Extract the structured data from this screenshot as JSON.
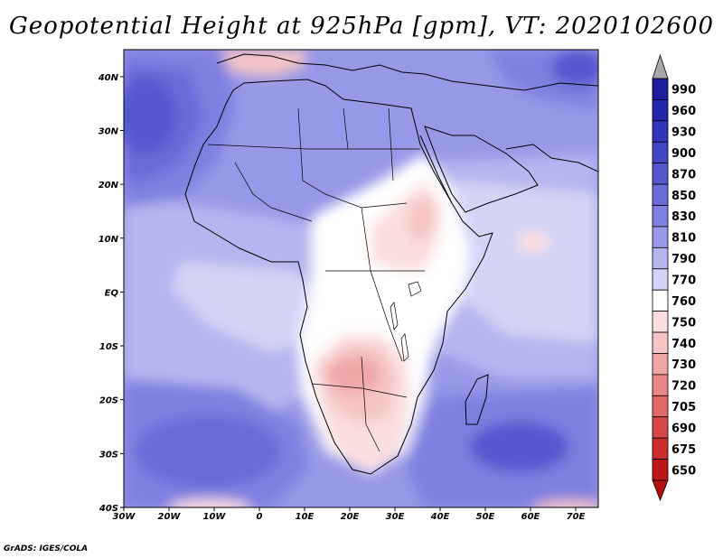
{
  "title": "Geopotential Height at 925hPa [gpm], VT: 2020102600",
  "footer": "GrADS: IGES/COLA",
  "map": {
    "projection": "latlon",
    "lon_range": [
      -30,
      75
    ],
    "lat_range": [
      -40,
      45
    ],
    "lon_ticks": [
      {
        "value": -30,
        "label": "30W"
      },
      {
        "value": -20,
        "label": "20W"
      },
      {
        "value": -10,
        "label": "10W"
      },
      {
        "value": 0,
        "label": "0"
      },
      {
        "value": 10,
        "label": "10E"
      },
      {
        "value": 20,
        "label": "20E"
      },
      {
        "value": 30,
        "label": "30E"
      },
      {
        "value": 40,
        "label": "40E"
      },
      {
        "value": 50,
        "label": "50E"
      },
      {
        "value": 60,
        "label": "60E"
      },
      {
        "value": 70,
        "label": "70E"
      }
    ],
    "lat_ticks": [
      {
        "value": 40,
        "label": "40N"
      },
      {
        "value": 30,
        "label": "30N"
      },
      {
        "value": 20,
        "label": "20N"
      },
      {
        "value": 10,
        "label": "10N"
      },
      {
        "value": 0,
        "label": "EQ"
      },
      {
        "value": -10,
        "label": "10S"
      },
      {
        "value": -20,
        "label": "20S"
      },
      {
        "value": -30,
        "label": "30S"
      },
      {
        "value": -40,
        "label": "40S"
      }
    ]
  },
  "legend": {
    "levels": [
      {
        "label": "990",
        "color": "#1d1d9e"
      },
      {
        "label": "960",
        "color": "#2626ad"
      },
      {
        "label": "930",
        "color": "#3434ba"
      },
      {
        "label": "900",
        "color": "#4444c6"
      },
      {
        "label": "870",
        "color": "#5656cf"
      },
      {
        "label": "850",
        "color": "#6a6ad8"
      },
      {
        "label": "830",
        "color": "#7f7fe0"
      },
      {
        "label": "810",
        "color": "#9898e8"
      },
      {
        "label": "790",
        "color": "#b5b5f0"
      },
      {
        "label": "770",
        "color": "#d4d4f7"
      },
      {
        "label": "760",
        "color": "#ffffff"
      },
      {
        "label": "750",
        "color": "#fbdede"
      },
      {
        "label": "740",
        "color": "#f6c4c4"
      },
      {
        "label": "730",
        "color": "#f0a6a6"
      },
      {
        "label": "720",
        "color": "#e98686"
      },
      {
        "label": "705",
        "color": "#e16767"
      },
      {
        "label": "690",
        "color": "#d84848"
      },
      {
        "label": "675",
        "color": "#cd2d2d"
      },
      {
        "label": "650",
        "color": "#bc1616"
      }
    ],
    "top_triangle_color": "#a8a8a8",
    "bottom_triangle_color": "#b50f0f"
  },
  "field_regions": [
    {
      "name": "north-atlantic-low-core",
      "level": "870",
      "lon": -27,
      "lat": 33
    },
    {
      "name": "sahara",
      "level": "810",
      "lon": 15,
      "lat": 24
    },
    {
      "name": "arabian-sea",
      "level": "770",
      "lon": 62,
      "lat": 5
    },
    {
      "name": "ethiopian-highlands",
      "level": "750",
      "lon": 37,
      "lat": 10
    },
    {
      "name": "southern-africa-plateau",
      "level": "730",
      "lon": 20,
      "lat": -17
    },
    {
      "name": "south-atlantic-high",
      "level": "850",
      "lon": -15,
      "lat": -27
    },
    {
      "name": "south-indian-high",
      "level": "870",
      "lon": 58,
      "lat": -27
    },
    {
      "name": "mediterranean-low",
      "level": "730",
      "lon": 5,
      "lat": 44
    },
    {
      "name": "southern-ocean-low",
      "level": "740",
      "lon": -10,
      "lat": -40
    }
  ]
}
